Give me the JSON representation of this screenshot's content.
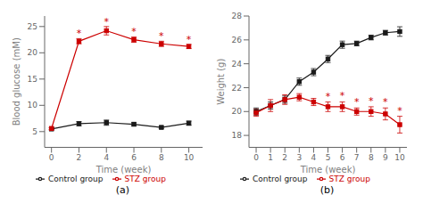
{
  "chart_data": [
    {
      "type": "line",
      "title": "(a)",
      "x_label": "Time (week)",
      "y_label": "Blood glucose (mM)",
      "x": [
        0,
        2,
        4,
        6,
        8,
        10
      ],
      "xlim": [
        -0.5,
        11
      ],
      "xticks": [
        0,
        2,
        4,
        6,
        8,
        10
      ],
      "ylim": [
        2,
        27
      ],
      "yticks": [
        5,
        10,
        15,
        20,
        25
      ],
      "grid": false,
      "legend": "bottom",
      "series": [
        {
          "name": "Control group",
          "color": "#1a1a1a",
          "marker": "square",
          "values": [
            5.5,
            6.5,
            6.7,
            6.4,
            5.8,
            6.6
          ],
          "errors": [
            0.2,
            0.4,
            0.5,
            0.3,
            0.2,
            0.4
          ]
        },
        {
          "name": "STZ group",
          "color": "#cc0000",
          "marker": "square",
          "values": [
            5.6,
            22.2,
            24.2,
            22.5,
            21.7,
            21.2
          ],
          "errors": [
            0.2,
            0.5,
            0.8,
            0.5,
            0.5,
            0.4
          ]
        }
      ],
      "annotations": [
        {
          "text": "*",
          "x": 2,
          "y": 22.9,
          "color": "#cc0000"
        },
        {
          "text": "*",
          "x": 4,
          "y": 25.2,
          "color": "#cc0000"
        },
        {
          "text": "*",
          "x": 6,
          "y": 23.2,
          "color": "#cc0000"
        },
        {
          "text": "*",
          "x": 8,
          "y": 22.4,
          "color": "#cc0000"
        },
        {
          "text": "*",
          "x": 10,
          "y": 21.8,
          "color": "#cc0000"
        }
      ]
    },
    {
      "type": "line",
      "title": "(b)",
      "x_label": "Time (week)",
      "y_label": "Weight (g)",
      "x": [
        0,
        1,
        2,
        3,
        4,
        5,
        6,
        7,
        8,
        9,
        10
      ],
      "xlim": [
        -0.5,
        10.5
      ],
      "xticks": [
        0,
        1,
        2,
        3,
        4,
        5,
        6,
        7,
        8,
        9,
        10
      ],
      "ylim": [
        17,
        28
      ],
      "yticks": [
        18,
        20,
        22,
        24,
        26,
        28
      ],
      "grid": false,
      "legend": "bottom",
      "series": [
        {
          "name": "Control group",
          "color": "#1a1a1a",
          "marker": "square",
          "values": [
            20.0,
            20.5,
            21.0,
            22.5,
            23.3,
            24.4,
            25.6,
            25.7,
            26.2,
            26.6,
            26.7
          ],
          "errors": [
            0.3,
            0.3,
            0.3,
            0.3,
            0.3,
            0.3,
            0.3,
            0.2,
            0.2,
            0.2,
            0.4
          ]
        },
        {
          "name": "STZ group",
          "color": "#cc0000",
          "marker": "square",
          "values": [
            19.9,
            20.5,
            21.0,
            21.2,
            20.8,
            20.4,
            20.4,
            20.0,
            20.0,
            19.8,
            18.9
          ],
          "errors": [
            0.3,
            0.5,
            0.4,
            0.3,
            0.3,
            0.4,
            0.4,
            0.3,
            0.4,
            0.5,
            0.7
          ]
        }
      ],
      "annotations": [
        {
          "text": "*",
          "x": 5,
          "y": 20.95,
          "color": "#cc0000"
        },
        {
          "text": "*",
          "x": 6,
          "y": 21.0,
          "color": "#cc0000"
        },
        {
          "text": "*",
          "x": 7,
          "y": 20.45,
          "color": "#cc0000"
        },
        {
          "text": "*",
          "x": 8,
          "y": 20.55,
          "color": "#cc0000"
        },
        {
          "text": "*",
          "x": 9,
          "y": 20.45,
          "color": "#cc0000"
        },
        {
          "text": "*",
          "x": 10,
          "y": 19.75,
          "color": "#cc0000"
        }
      ]
    }
  ]
}
